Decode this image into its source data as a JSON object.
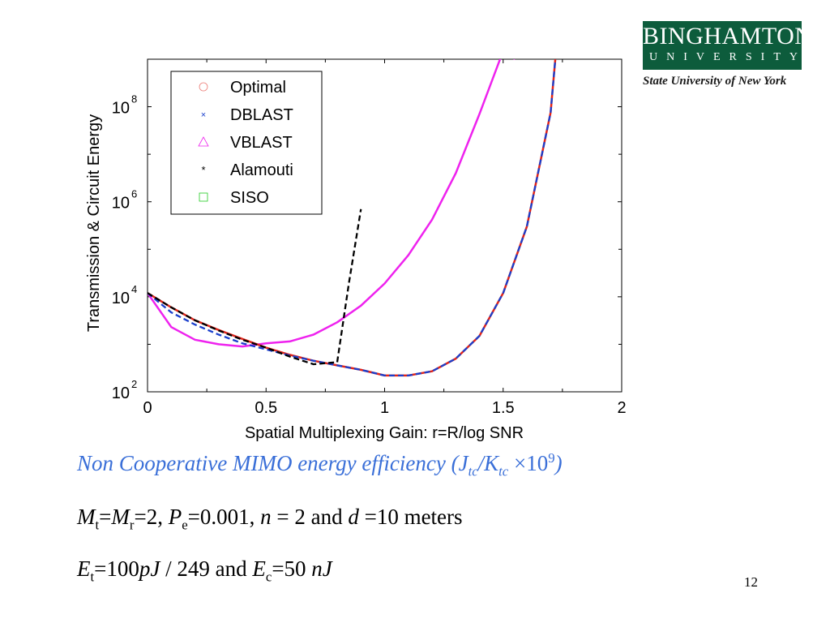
{
  "logo": {
    "word1": "BINGHAMTON",
    "word2": "UNIVERSITY",
    "tagline": "State University of New York",
    "color": "#0d5c3c"
  },
  "chart_data": {
    "type": "line",
    "xlabel": "Spatial Multiplexing Gain: r=R/log SNR",
    "ylabel": "Transmission & Circuit Energy",
    "xlim": [
      0,
      2
    ],
    "ylim_log10": [
      2,
      9
    ],
    "y_scale": "log",
    "x_ticks": [
      "0",
      "0.5",
      "1",
      "1.5",
      "2"
    ],
    "y_ticks": [
      {
        "base": "10",
        "exp": "2"
      },
      {
        "base": "10",
        "exp": "4"
      },
      {
        "base": "10",
        "exp": "6"
      },
      {
        "base": "10",
        "exp": "8"
      }
    ],
    "legend_position": "top-left",
    "series": [
      {
        "name": "Optimal",
        "color": "#e0241a",
        "marker": "circle",
        "x": [
          0,
          0.1,
          0.2,
          0.3,
          0.4,
          0.5,
          0.6,
          0.7,
          0.8,
          0.9,
          1.0,
          1.1,
          1.2,
          1.3,
          1.4,
          1.5,
          1.6,
          1.7,
          1.72
        ],
        "y": [
          12000,
          6000,
          3200,
          2000,
          1300,
          850,
          600,
          450,
          360,
          290,
          220,
          220,
          270,
          500,
          1500,
          12000,
          300000,
          75000000,
          1000000000
        ]
      },
      {
        "name": "DBLAST",
        "color": "#1a3fcc",
        "marker": "x",
        "dashed": true,
        "x": [
          0,
          0.1,
          0.2,
          0.3,
          0.4,
          0.5,
          0.6,
          0.7,
          0.8,
          0.9,
          1.0,
          1.1,
          1.2,
          1.3,
          1.4,
          1.5,
          1.6,
          1.7,
          1.72
        ],
        "y": [
          12000,
          4700,
          2600,
          1600,
          1050,
          780,
          580,
          450,
          360,
          290,
          220,
          220,
          270,
          500,
          1500,
          12000,
          300000,
          75000000,
          1000000000
        ]
      },
      {
        "name": "VBLAST",
        "color": "#ee22ee",
        "marker": "triangle",
        "x": [
          0,
          0.1,
          0.2,
          0.3,
          0.4,
          0.5,
          0.6,
          0.7,
          0.8,
          0.9,
          1.0,
          1.1,
          1.2,
          1.3,
          1.4,
          1.5,
          1.55
        ],
        "y": [
          12000,
          2300,
          1250,
          1000,
          900,
          1050,
          1150,
          1600,
          2900,
          6500,
          19000,
          75000,
          420000,
          4000000,
          70000000,
          1500000000,
          1000000000
        ]
      },
      {
        "name": "Alamouti",
        "color": "#000000",
        "marker": "star",
        "dashed": true,
        "x": [
          0,
          0.1,
          0.2,
          0.3,
          0.4,
          0.5,
          0.6,
          0.7,
          0.8,
          0.85,
          0.9
        ],
        "y": [
          12000,
          6000,
          3200,
          1950,
          1250,
          850,
          550,
          380,
          420,
          20000,
          700000
        ]
      },
      {
        "name": "SISO",
        "color": "#22cc22",
        "marker": "square",
        "x": [],
        "y": []
      }
    ]
  },
  "caption": {
    "prefix": "Non Cooperative MIMO energy efficiency (J",
    "sub1": "tc",
    "slash": "/K",
    "sub2": "tc",
    "times": " ×10",
    "sup": "9",
    "suffix": ")"
  },
  "params1": {
    "M": "M",
    "t": "t",
    "eq1": "=",
    "M2": "M",
    "r": "r",
    "val1": "=2, ",
    "P": "P",
    "e": "e",
    "val2": "=0.001, ",
    "n": "n",
    "val3": " = 2 and ",
    "d": "d",
    "val4": " =10 meters"
  },
  "params2": {
    "E": "E",
    "t": "t",
    "val1": "=100",
    "pJ": "pJ",
    "val2": " / 249 and ",
    "E2": "E",
    "c": "c",
    "val3": "=50 ",
    "nJ": "nJ"
  },
  "page_number": "12"
}
